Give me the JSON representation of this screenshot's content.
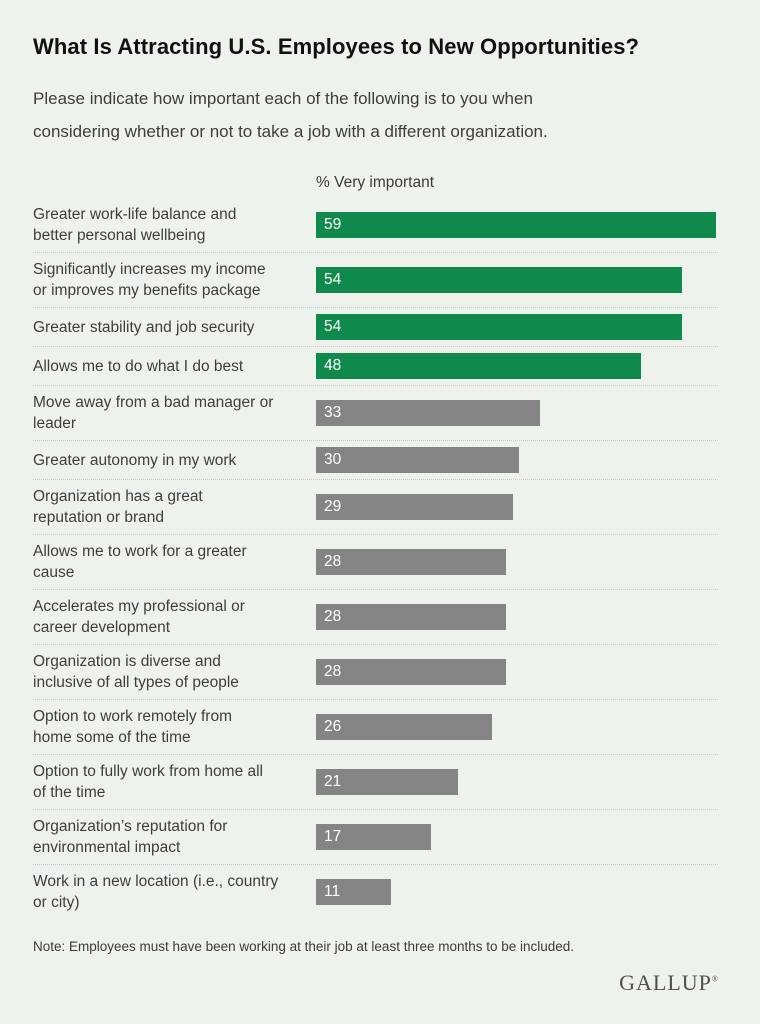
{
  "page": {
    "title": "What Is Attracting U.S. Employees to New Opportunities?",
    "subtitle": "Please indicate how important each of the following is to you when\nconsidering whether or not to take a job with a different organization.",
    "note": "Note: Employees must have been working at their job at least three months to be included.",
    "brand": "GALLUP",
    "brand_reg": "®"
  },
  "chart_data": {
    "type": "bar",
    "orientation": "horizontal",
    "value_header": "% Very important",
    "axis_max": 59,
    "grid": "dotted-row-separators",
    "colors": {
      "highlight_bar": "#0f8a4c",
      "default_bar": "#848484",
      "value_text": "#ffffff",
      "background": "#edf3ec"
    },
    "categories": [
      "Greater work-life balance and\nbetter personal wellbeing",
      "Significantly increases my income\nor improves my benefits package",
      "Greater stability and job security",
      "Allows me to do what I do best",
      "Move away from a bad manager or\nleader",
      "Greater autonomy in my work",
      "Organization has a great\nreputation or brand",
      "Allows me to work for a greater\ncause",
      "Accelerates my professional or\ncareer development",
      "Organization is diverse and\ninclusive of all types of people",
      "Option to work remotely from\nhome some of the time",
      "Option to fully work from home all\nof the time",
      "Organization’s reputation for\nenvironmental impact",
      "Work in a new location (i.e., country\nor city)"
    ],
    "values": [
      59,
      54,
      54,
      48,
      33,
      30,
      29,
      28,
      28,
      28,
      26,
      21,
      17,
      11
    ],
    "highlighted": [
      true,
      true,
      true,
      true,
      false,
      false,
      false,
      false,
      false,
      false,
      false,
      false,
      false,
      false
    ]
  }
}
